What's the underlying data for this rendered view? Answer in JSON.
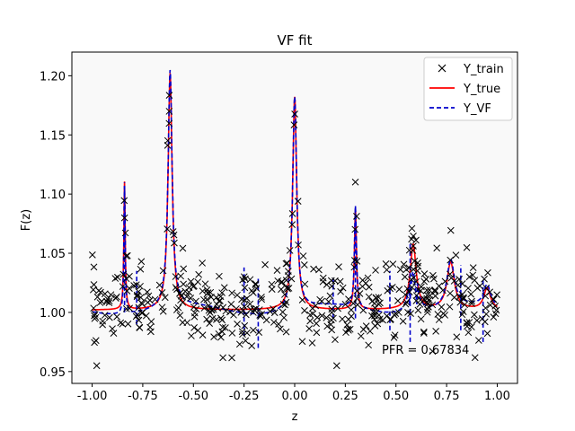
{
  "chart_data": {
    "type": "line",
    "title": "VF fit",
    "xlabel": "z",
    "ylabel": "F(z)",
    "xlim": [
      -1.1,
      1.1
    ],
    "ylim": [
      0.94,
      1.22
    ],
    "xticks": [
      "-1.00",
      "-0.75",
      "-0.50",
      "-0.25",
      "0.00",
      "0.25",
      "0.50",
      "0.75",
      "1.00"
    ],
    "yticks": [
      "0.95",
      "1.00",
      "1.05",
      "1.10",
      "1.15",
      "1.20"
    ],
    "grid": false,
    "legend_position": "top-right",
    "series": [
      {
        "name": "Y_train",
        "style": "markers-x",
        "color": "#000000"
      },
      {
        "name": "Y_true",
        "style": "solid",
        "color": "#ff0000"
      },
      {
        "name": "Y_VF",
        "style": "dashed",
        "color": "#0000cc"
      }
    ],
    "peaks": [
      {
        "center": -0.84,
        "height": 0.108,
        "width": 0.004
      },
      {
        "center": -0.615,
        "height": 0.2,
        "width": 0.012
      },
      {
        "center": 0.0,
        "height": 0.18,
        "width": 0.012
      },
      {
        "center": 0.3,
        "height": 0.085,
        "width": 0.006
      },
      {
        "center": 0.585,
        "height": 0.055,
        "width": 0.018
      },
      {
        "center": 0.77,
        "height": 0.04,
        "width": 0.022
      },
      {
        "center": 0.95,
        "height": 0.018,
        "width": 0.02
      }
    ],
    "baseline": 1.002,
    "noise_std": 0.017,
    "sample_count": 500,
    "annotation": "PFR = 0.67834"
  }
}
